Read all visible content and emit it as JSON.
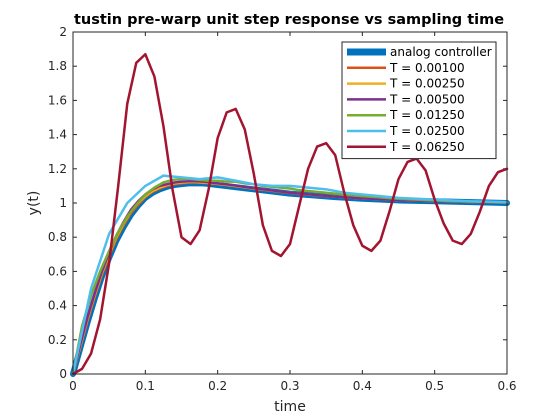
{
  "chart_data": {
    "type": "line",
    "title": "tustin pre-warp unit step response vs sampling time",
    "xlabel": "time",
    "ylabel": "y(t)",
    "xlim": [
      0,
      0.6
    ],
    "ylim": [
      0,
      2
    ],
    "xticks": [
      0,
      0.1,
      0.2,
      0.3,
      0.4,
      0.5,
      0.6
    ],
    "xtick_labels": [
      "0",
      "0.1",
      "0.2",
      "0.3",
      "0.4",
      "0.5",
      "0.6"
    ],
    "yticks": [
      0,
      0.2,
      0.4,
      0.6,
      0.8,
      1,
      1.2,
      1.4,
      1.6,
      1.8,
      2
    ],
    "ytick_labels": [
      "0",
      "0.2",
      "0.4",
      "0.6",
      "0.8",
      "1",
      "1.2",
      "1.4",
      "1.6",
      "1.8",
      "2"
    ],
    "grid": false,
    "legend_position": "top-right",
    "series": [
      {
        "name": "analog controller",
        "color": "#0072BD",
        "style": "thick",
        "x": [
          0,
          0.01,
          0.02,
          0.03,
          0.04,
          0.05,
          0.06,
          0.07,
          0.08,
          0.09,
          0.1,
          0.11,
          0.12,
          0.13,
          0.14,
          0.15,
          0.16,
          0.17,
          0.18,
          0.19,
          0.2,
          0.22,
          0.24,
          0.26,
          0.28,
          0.3,
          0.33,
          0.36,
          0.4,
          0.45,
          0.5,
          0.55,
          0.6
        ],
        "y": [
          0,
          0.15,
          0.3,
          0.44,
          0.57,
          0.68,
          0.78,
          0.86,
          0.93,
          0.985,
          1.03,
          1.06,
          1.08,
          1.095,
          1.105,
          1.11,
          1.115,
          1.115,
          1.115,
          1.11,
          1.105,
          1.095,
          1.085,
          1.075,
          1.065,
          1.055,
          1.045,
          1.035,
          1.025,
          1.015,
          1.01,
          1.005,
          1.0
        ]
      },
      {
        "name": "T = 0.00100",
        "color": "#D95319",
        "style": "thin",
        "x": [
          0,
          0.01,
          0.02,
          0.03,
          0.04,
          0.05,
          0.06,
          0.07,
          0.08,
          0.09,
          0.1,
          0.11,
          0.12,
          0.13,
          0.14,
          0.15,
          0.16,
          0.17,
          0.18,
          0.19,
          0.2,
          0.22,
          0.24,
          0.26,
          0.28,
          0.3,
          0.33,
          0.36,
          0.4,
          0.45,
          0.5,
          0.55,
          0.6
        ],
        "y": [
          0,
          0.155,
          0.31,
          0.45,
          0.58,
          0.69,
          0.79,
          0.87,
          0.94,
          0.99,
          1.035,
          1.065,
          1.085,
          1.1,
          1.11,
          1.115,
          1.12,
          1.12,
          1.118,
          1.115,
          1.11,
          1.1,
          1.09,
          1.078,
          1.068,
          1.058,
          1.047,
          1.037,
          1.027,
          1.017,
          1.011,
          1.006,
          1.002
        ]
      },
      {
        "name": "T = 0.00250",
        "color": "#EDB120",
        "style": "thin",
        "x": [
          0,
          0.01,
          0.02,
          0.03,
          0.04,
          0.05,
          0.06,
          0.07,
          0.08,
          0.09,
          0.1,
          0.11,
          0.12,
          0.13,
          0.14,
          0.15,
          0.16,
          0.17,
          0.18,
          0.19,
          0.2,
          0.22,
          0.24,
          0.26,
          0.28,
          0.3,
          0.33,
          0.36,
          0.4,
          0.45,
          0.5,
          0.55,
          0.6
        ],
        "y": [
          0,
          0.16,
          0.32,
          0.46,
          0.59,
          0.7,
          0.8,
          0.88,
          0.95,
          1.0,
          1.04,
          1.07,
          1.09,
          1.105,
          1.115,
          1.12,
          1.123,
          1.123,
          1.12,
          1.117,
          1.112,
          1.102,
          1.09,
          1.08,
          1.07,
          1.06,
          1.048,
          1.038,
          1.027,
          1.017,
          1.011,
          1.006,
          1.002
        ]
      },
      {
        "name": "T = 0.00500",
        "color": "#7E2F8E",
        "style": "thin",
        "x": [
          0,
          0.01,
          0.02,
          0.03,
          0.04,
          0.05,
          0.06,
          0.07,
          0.08,
          0.09,
          0.1,
          0.11,
          0.12,
          0.13,
          0.14,
          0.15,
          0.16,
          0.17,
          0.18,
          0.19,
          0.2,
          0.22,
          0.24,
          0.26,
          0.28,
          0.3,
          0.33,
          0.36,
          0.4,
          0.45,
          0.5,
          0.55,
          0.6
        ],
        "y": [
          0,
          0.17,
          0.33,
          0.47,
          0.6,
          0.71,
          0.81,
          0.89,
          0.96,
          1.01,
          1.05,
          1.08,
          1.1,
          1.11,
          1.12,
          1.125,
          1.127,
          1.127,
          1.125,
          1.12,
          1.115,
          1.105,
          1.092,
          1.082,
          1.071,
          1.06,
          1.049,
          1.038,
          1.027,
          1.017,
          1.011,
          1.006,
          1.002
        ]
      },
      {
        "name": "T = 0.01250",
        "color": "#77AC30",
        "style": "thin",
        "x": [
          0,
          0.0125,
          0.025,
          0.0375,
          0.05,
          0.0625,
          0.075,
          0.0875,
          0.1,
          0.1125,
          0.125,
          0.1375,
          0.15,
          0.1625,
          0.175,
          0.1875,
          0.2,
          0.2125,
          0.225,
          0.2375,
          0.25,
          0.2625,
          0.275,
          0.2875,
          0.3,
          0.3125,
          0.325,
          0.35,
          0.375,
          0.4,
          0.45,
          0.5,
          0.55,
          0.6
        ],
        "y": [
          0,
          0.28,
          0.46,
          0.6,
          0.72,
          0.83,
          0.92,
          0.99,
          1.05,
          1.09,
          1.12,
          1.135,
          1.14,
          1.14,
          1.135,
          1.13,
          1.13,
          1.125,
          1.125,
          1.115,
          1.11,
          1.1,
          1.095,
          1.09,
          1.085,
          1.075,
          1.07,
          1.06,
          1.05,
          1.04,
          1.025,
          1.015,
          1.008,
          1.004
        ]
      },
      {
        "name": "T = 0.02500",
        "color": "#4DBEEE",
        "style": "thin",
        "x": [
          0,
          0.025,
          0.05,
          0.075,
          0.1,
          0.125,
          0.15,
          0.175,
          0.2,
          0.225,
          0.25,
          0.275,
          0.3,
          0.325,
          0.35,
          0.375,
          0.4,
          0.425,
          0.45,
          0.475,
          0.5,
          0.525,
          0.55,
          0.575,
          0.6
        ],
        "y": [
          0,
          0.5,
          0.82,
          1.0,
          1.1,
          1.16,
          1.15,
          1.14,
          1.15,
          1.13,
          1.11,
          1.1,
          1.1,
          1.09,
          1.08,
          1.06,
          1.05,
          1.04,
          1.03,
          1.025,
          1.02,
          1.015,
          1.01,
          1.008,
          1.005
        ]
      },
      {
        "name": "T = 0.06250",
        "color": "#A2142F",
        "style": "thin",
        "x": [
          0,
          0.0125,
          0.025,
          0.0375,
          0.05,
          0.0625,
          0.075,
          0.0875,
          0.1,
          0.1125,
          0.125,
          0.1375,
          0.15,
          0.1625,
          0.175,
          0.1875,
          0.2,
          0.2125,
          0.225,
          0.2375,
          0.25,
          0.2625,
          0.275,
          0.2875,
          0.3,
          0.3125,
          0.325,
          0.3375,
          0.35,
          0.3625,
          0.375,
          0.3875,
          0.4,
          0.4125,
          0.425,
          0.4375,
          0.45,
          0.4625,
          0.475,
          0.4875,
          0.5,
          0.5125,
          0.525,
          0.5375,
          0.55,
          0.5625,
          0.575,
          0.5875,
          0.6
        ],
        "y": [
          0,
          0.03,
          0.12,
          0.32,
          0.65,
          1.1,
          1.58,
          1.82,
          1.87,
          1.74,
          1.45,
          1.08,
          0.8,
          0.76,
          0.84,
          1.08,
          1.38,
          1.53,
          1.55,
          1.43,
          1.17,
          0.87,
          0.72,
          0.69,
          0.76,
          0.98,
          1.2,
          1.33,
          1.35,
          1.28,
          1.06,
          0.87,
          0.75,
          0.72,
          0.78,
          0.95,
          1.14,
          1.24,
          1.26,
          1.19,
          1.02,
          0.88,
          0.78,
          0.76,
          0.82,
          0.95,
          1.1,
          1.18,
          1.2
        ]
      }
    ]
  }
}
